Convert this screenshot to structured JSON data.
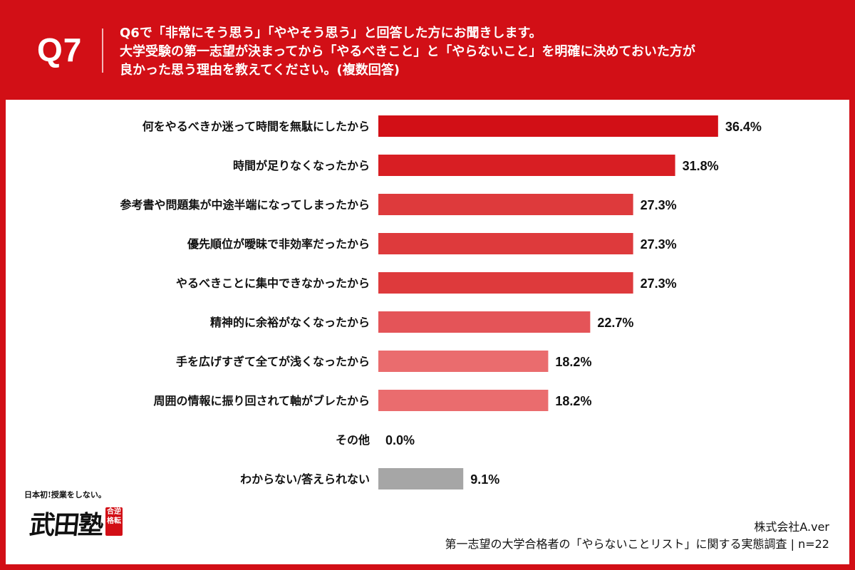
{
  "header": {
    "q_label": "Q7",
    "question_lines": [
      "Q6で「非常にそう思う」「ややそう思う」と回答した方にお聞きします。",
      "大学受験の第一志望が決まってから「やるべきこと」と「やらないこと」を明確に決めておいた方が",
      "良かった思う理由を教えてください。(複数回答)"
    ]
  },
  "chart_data": {
    "type": "bar",
    "orientation": "horizontal",
    "categories": [
      "何をやるべきか迷って時間を無駄にしたから",
      "時間が足りなくなったから",
      "参考書や問題集が中途半端になってしまったから",
      "優先順位が曖昧で非効率だったから",
      "やるべきことに集中できなかったから",
      "精神的に余裕がなくなったから",
      "手を広げすぎて全てが浅くなったから",
      "周囲の情報に振り回されて軸がブレたから",
      "その他",
      "わからない/答えられない"
    ],
    "values": [
      36.4,
      31.8,
      27.3,
      27.3,
      27.3,
      22.7,
      18.2,
      18.2,
      0.0,
      9.1
    ],
    "value_labels": [
      "36.4%",
      "31.8%",
      "27.3%",
      "27.3%",
      "27.3%",
      "22.7%",
      "18.2%",
      "18.2%",
      "0.0%",
      "9.1%"
    ],
    "bar_colors": [
      "#d20f16",
      "#d81e23",
      "#de3a3c",
      "#de3a3c",
      "#de3a3c",
      "#e45458",
      "#ea6c6e",
      "#ea6c6e",
      "#ea6c6e",
      "#a6a6a6"
    ],
    "xlim": [
      0,
      40
    ],
    "grid": false,
    "legend": "none"
  },
  "footer": {
    "company": "株式会社A.ver",
    "survey": "第一志望の大学合格者の「やらないことリスト」に関する実態調査 | n=22"
  },
  "logo": {
    "tagline": "日本初!授業をしない。",
    "name": "武田塾",
    "seal": "合逆格転"
  }
}
